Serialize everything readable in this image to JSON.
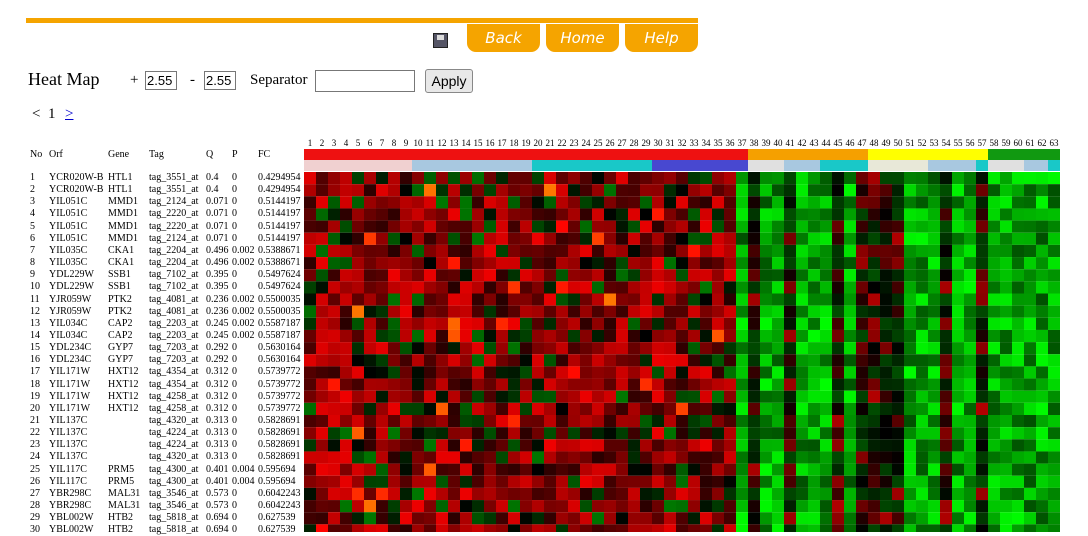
{
  "toolbar": {
    "buttons": [
      "Back",
      "Home",
      "Help"
    ]
  },
  "controls": {
    "title": "Heat Map",
    "plus": "+",
    "plus_value": "2.55",
    "minus": "-",
    "minus_value": "2.55",
    "separator_label": "Separator",
    "apply": "Apply"
  },
  "pager": {
    "prev": "<",
    "page": "1",
    "next": ">"
  },
  "table": {
    "columns": [
      "No",
      "Orf",
      "Gene",
      "Tag",
      "Q",
      "P",
      "FC"
    ],
    "rows": [
      [
        "1",
        "YCR020W-B",
        "HTL1",
        "tag_3551_at",
        "0.4",
        "0",
        "0.4294954"
      ],
      [
        "2",
        "YCR020W-B",
        "HTL1",
        "tag_3551_at",
        "0.4",
        "0",
        "0.4294954"
      ],
      [
        "3",
        "YIL051C",
        "MMD1",
        "tag_2124_at",
        "0.071",
        "0",
        "0.5144197"
      ],
      [
        "4",
        "YIL051C",
        "MMD1",
        "tag_2220_at",
        "0.071",
        "0",
        "0.5144197"
      ],
      [
        "5",
        "YIL051C",
        "MMD1",
        "tag_2220_at",
        "0.071",
        "0",
        "0.5144197"
      ],
      [
        "6",
        "YIL051C",
        "MMD1",
        "tag_2124_at",
        "0.071",
        "0",
        "0.5144197"
      ],
      [
        "7",
        "YIL035C",
        "CKA1",
        "tag_2204_at",
        "0.496",
        "0.002",
        "0.5388671"
      ],
      [
        "8",
        "YIL035C",
        "CKA1",
        "tag_2204_at",
        "0.496",
        "0.002",
        "0.5388671"
      ],
      [
        "9",
        "YDL229W",
        "SSB1",
        "tag_7102_at",
        "0.395",
        "0",
        "0.5497624"
      ],
      [
        "10",
        "YDL229W",
        "SSB1",
        "tag_7102_at",
        "0.395",
        "0",
        "0.5497624"
      ],
      [
        "11",
        "YJR059W",
        "PTK2",
        "tag_4081_at",
        "0.236",
        "0.002",
        "0.5500035"
      ],
      [
        "12",
        "YJR059W",
        "PTK2",
        "tag_4081_at",
        "0.236",
        "0.002",
        "0.5500035"
      ],
      [
        "13",
        "YIL034C",
        "CAP2",
        "tag_2203_at",
        "0.245",
        "0.002",
        "0.5587187"
      ],
      [
        "14",
        "YIL034C",
        "CAP2",
        "tag_2203_at",
        "0.245",
        "0.002",
        "0.5587187"
      ],
      [
        "15",
        "YDL234C",
        "GYP7",
        "tag_7203_at",
        "0.292",
        "0",
        "0.5630164"
      ],
      [
        "16",
        "YDL234C",
        "GYP7",
        "tag_7203_at",
        "0.292",
        "0",
        "0.5630164"
      ],
      [
        "17",
        "YIL171W",
        "HXT12",
        "tag_4354_at",
        "0.312",
        "0",
        "0.5739772"
      ],
      [
        "18",
        "YIL171W",
        "HXT12",
        "tag_4354_at",
        "0.312",
        "0",
        "0.5739772"
      ],
      [
        "19",
        "YIL171W",
        "HXT12",
        "tag_4258_at",
        "0.312",
        "0",
        "0.5739772"
      ],
      [
        "20",
        "YIL171W",
        "HXT12",
        "tag_4258_at",
        "0.312",
        "0",
        "0.5739772"
      ],
      [
        "21",
        "YIL137C",
        null,
        "tag_4320_at",
        "0.313",
        "0",
        "0.5828691"
      ],
      [
        "22",
        "YIL137C",
        null,
        "tag_4224_at",
        "0.313",
        "0",
        "0.5828691"
      ],
      [
        "23",
        "YIL137C",
        null,
        "tag_4224_at",
        "0.313",
        "0",
        "0.5828691"
      ],
      [
        "24",
        "YIL137C",
        null,
        "tag_4320_at",
        "0.313",
        "0",
        "0.5828691"
      ],
      [
        "25",
        "YIL117C",
        "PRM5",
        "tag_4300_at",
        "0.401",
        "0.004",
        "0.595694"
      ],
      [
        "26",
        "YIL117C",
        "PRM5",
        "tag_4300_at",
        "0.401",
        "0.004",
        "0.595694"
      ],
      [
        "27",
        "YBR298C",
        "MAL31",
        "tag_3546_at",
        "0.573",
        "0",
        "0.6042243"
      ],
      [
        "28",
        "YBR298C",
        "MAL31",
        "tag_3546_at",
        "0.573",
        "0",
        "0.6042243"
      ],
      [
        "29",
        "YBL002W",
        "HTB2",
        "tag_5818_at",
        "0.694",
        "0",
        "0.627539"
      ],
      [
        "30",
        "YBL002W",
        "HTB2",
        "tag_5818_at",
        "0.694",
        "0",
        "0.627539"
      ]
    ]
  },
  "heatmap": {
    "column_labels": [
      1,
      2,
      3,
      4,
      5,
      6,
      7,
      8,
      9,
      10,
      11,
      12,
      13,
      14,
      15,
      16,
      17,
      18,
      19,
      20,
      21,
      22,
      23,
      24,
      25,
      26,
      27,
      28,
      29,
      30,
      31,
      32,
      33,
      34,
      35,
      36,
      37,
      38,
      39,
      40,
      41,
      42,
      43,
      44,
      45,
      46,
      47,
      48,
      49,
      50,
      51,
      52,
      53,
      54,
      55,
      56,
      57,
      58,
      59,
      60,
      61,
      62,
      63
    ]
  }
}
